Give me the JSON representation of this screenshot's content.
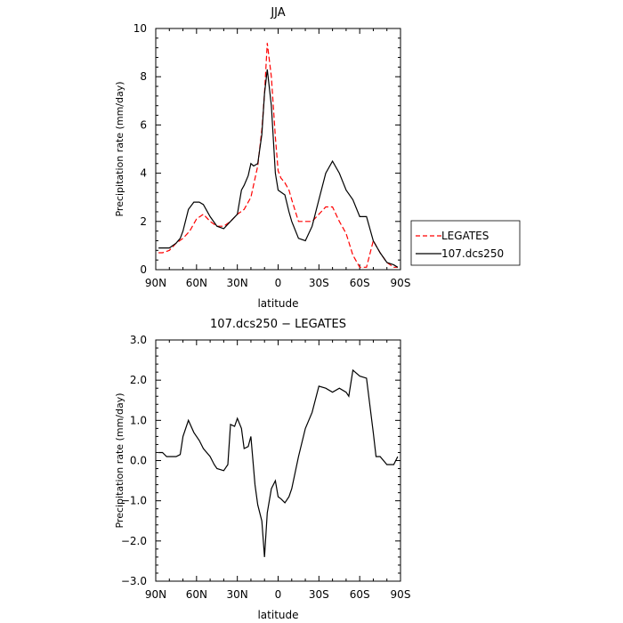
{
  "chart_data": [
    {
      "type": "line",
      "title": "JJA",
      "xlabel": "latitude",
      "ylabel": "Precipitation rate  (mm/day)",
      "x_ticks": [
        {
          "value": -90,
          "label": "90N"
        },
        {
          "value": -60,
          "label": "60N"
        },
        {
          "value": -30,
          "label": "30N"
        },
        {
          "value": 0,
          "label": "0"
        },
        {
          "value": 30,
          "label": "30S"
        },
        {
          "value": 60,
          "label": "60S"
        },
        {
          "value": 90,
          "label": "90S"
        }
      ],
      "y_ticks": [
        {
          "value": 0,
          "label": "0"
        },
        {
          "value": 2,
          "label": "2"
        },
        {
          "value": 4,
          "label": "4"
        },
        {
          "value": 6,
          "label": "6"
        },
        {
          "value": 8,
          "label": "8"
        },
        {
          "value": 10,
          "label": "10"
        }
      ],
      "xlim": [
        -90,
        90
      ],
      "ylim": [
        0,
        10
      ],
      "legend_position": "outside-right",
      "series": [
        {
          "name": "LEGATES",
          "color": "#ff0000",
          "dash": "dashed",
          "x": [
            -88,
            -85,
            -80,
            -75,
            -70,
            -65,
            -60,
            -55,
            -50,
            -45,
            -40,
            -35,
            -30,
            -25,
            -20,
            -15,
            -12,
            -10,
            -8,
            -5,
            -2,
            0,
            2,
            5,
            8,
            10,
            15,
            20,
            25,
            30,
            35,
            40,
            45,
            50,
            55,
            60,
            65,
            70,
            75,
            80,
            85,
            88
          ],
          "y": [
            0.7,
            0.7,
            0.8,
            1.1,
            1.3,
            1.6,
            2.1,
            2.3,
            2.0,
            1.8,
            1.8,
            2.0,
            2.3,
            2.5,
            3.0,
            4.3,
            5.8,
            7.3,
            9.4,
            8.0,
            5.5,
            4.1,
            3.8,
            3.6,
            3.3,
            2.9,
            2.0,
            2.0,
            2.0,
            2.3,
            2.6,
            2.6,
            2.0,
            1.5,
            0.6,
            0.1,
            0.1,
            1.2,
            0.7,
            0.3,
            0.1,
            0.1
          ]
        },
        {
          "name": "107.dcs250",
          "color": "#000000",
          "dash": "solid",
          "x": [
            -88,
            -85,
            -80,
            -75,
            -72,
            -70,
            -66,
            -62,
            -58,
            -55,
            -50,
            -45,
            -40,
            -35,
            -30,
            -27,
            -25,
            -22,
            -20,
            -18,
            -15,
            -12,
            -10,
            -8,
            -5,
            -2,
            0,
            5,
            8,
            10,
            15,
            20,
            25,
            30,
            35,
            40,
            45,
            50,
            55,
            60,
            65,
            70,
            75,
            80,
            85,
            88
          ],
          "y": [
            0.9,
            0.9,
            0.9,
            1.1,
            1.3,
            1.6,
            2.5,
            2.8,
            2.8,
            2.7,
            2.2,
            1.8,
            1.7,
            2.0,
            2.3,
            3.3,
            3.5,
            3.9,
            4.4,
            4.3,
            4.4,
            5.6,
            7.3,
            8.3,
            6.8,
            4.0,
            3.3,
            3.1,
            2.4,
            2.0,
            1.3,
            1.2,
            1.8,
            2.9,
            4.0,
            4.5,
            4.0,
            3.3,
            2.9,
            2.2,
            2.2,
            1.2,
            0.7,
            0.3,
            0.2,
            0.1
          ]
        }
      ]
    },
    {
      "type": "line",
      "title": "107.dcs250 − LEGATES",
      "xlabel": "latitude",
      "ylabel": "Precipitation rate  (mm/day)",
      "x_ticks": [
        {
          "value": -90,
          "label": "90N"
        },
        {
          "value": -60,
          "label": "60N"
        },
        {
          "value": -30,
          "label": "30N"
        },
        {
          "value": 0,
          "label": "0"
        },
        {
          "value": 30,
          "label": "30S"
        },
        {
          "value": 60,
          "label": "60S"
        },
        {
          "value": 90,
          "label": "90S"
        }
      ],
      "y_ticks": [
        {
          "value": -3,
          "label": "−3.0"
        },
        {
          "value": -2,
          "label": "−2.0"
        },
        {
          "value": -1,
          "label": "−1.0"
        },
        {
          "value": 0,
          "label": "0.0"
        },
        {
          "value": 1,
          "label": "1.0"
        },
        {
          "value": 2,
          "label": "2.0"
        },
        {
          "value": 3,
          "label": "3.0"
        }
      ],
      "xlim": [
        -90,
        90
      ],
      "ylim": [
        -3,
        3
      ],
      "series": [
        {
          "color": "#000000",
          "dash": "solid",
          "x": [
            -88,
            -85,
            -82,
            -80,
            -75,
            -72,
            -70,
            -66,
            -62,
            -58,
            -55,
            -50,
            -47,
            -45,
            -40,
            -37,
            -35,
            -32,
            -30,
            -27,
            -25,
            -22,
            -20,
            -17,
            -15,
            -12,
            -10,
            -8,
            -5,
            -2,
            0,
            2,
            5,
            8,
            10,
            15,
            20,
            25,
            30,
            35,
            40,
            45,
            50,
            52,
            55,
            60,
            65,
            70,
            72,
            75,
            80,
            85,
            88
          ],
          "y": [
            0.2,
            0.2,
            0.1,
            0.1,
            0.1,
            0.15,
            0.6,
            1.0,
            0.7,
            0.5,
            0.3,
            0.1,
            -0.1,
            -0.2,
            -0.25,
            -0.1,
            0.9,
            0.85,
            1.05,
            0.8,
            0.3,
            0.35,
            0.6,
            -0.6,
            -1.1,
            -1.5,
            -2.4,
            -1.3,
            -0.7,
            -0.5,
            -0.9,
            -0.95,
            -1.05,
            -0.9,
            -0.7,
            0.1,
            0.8,
            1.2,
            1.85,
            1.8,
            1.7,
            1.8,
            1.7,
            1.6,
            2.25,
            2.1,
            2.05,
            0.7,
            0.1,
            0.1,
            -0.1,
            -0.1,
            0.1
          ]
        }
      ]
    }
  ]
}
